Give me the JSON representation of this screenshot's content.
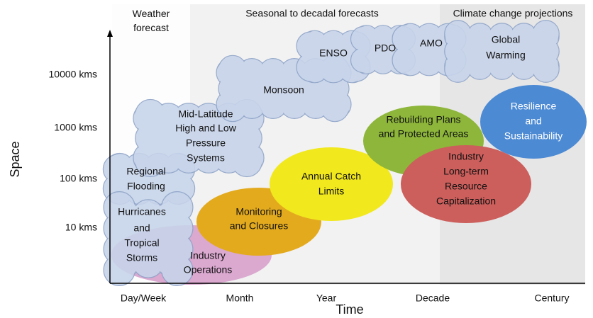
{
  "bands": [
    "Weather\nforecast",
    "Seasonal to decadal forecasts",
    "Climate change projections"
  ],
  "axis": {
    "y_title": "Space",
    "x_title": "Time",
    "y_labels": [
      "10000  kms",
      "1000  kms",
      "100  kms",
      "10  kms"
    ],
    "x_labels": [
      "Day/Week",
      "Month",
      "Year",
      "Decade",
      "Century"
    ]
  },
  "clouds": [
    {
      "lines": [
        "Regional",
        "Flooding"
      ]
    },
    {
      "lines": [
        "Hurricanes",
        "and",
        "Tropical",
        "Storms"
      ]
    },
    {
      "lines": [
        "Mid-Latitude",
        "High and Low",
        "Pressure",
        "Systems"
      ]
    },
    {
      "lines": [
        "Monsoon"
      ]
    },
    {
      "lines": [
        "ENSO"
      ]
    },
    {
      "lines": [
        "PDO"
      ]
    },
    {
      "lines": [
        "AMO"
      ]
    },
    {
      "lines": [
        "Global",
        "Warming"
      ]
    }
  ],
  "ellipses": [
    {
      "lines": [
        "Industry",
        "Operations"
      ]
    },
    {
      "lines": [
        "Monitoring",
        "and Closures"
      ]
    },
    {
      "lines": [
        "Annual Catch",
        "Limits"
      ]
    },
    {
      "lines": [
        "Rebuilding Plans",
        "and Protected Areas"
      ]
    },
    {
      "lines": [
        "Industry",
        "Long-term",
        "Resource",
        "Capitalization"
      ]
    },
    {
      "lines": [
        "Resilience",
        "and",
        "Sustainability"
      ]
    }
  ]
}
